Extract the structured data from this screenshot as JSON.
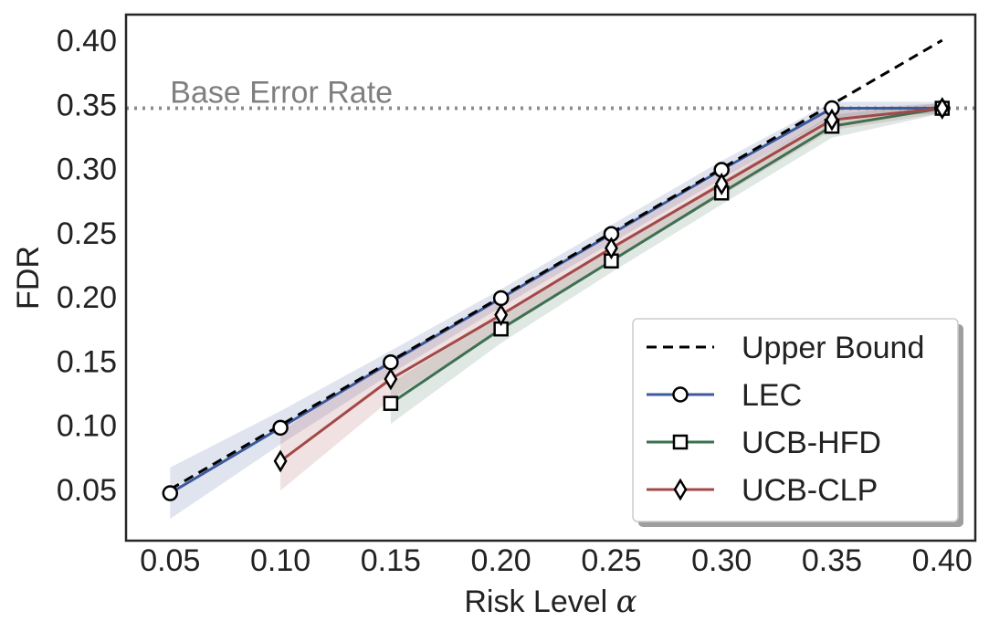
{
  "chart_data": {
    "type": "line",
    "xlabel": "Risk Level",
    "xlabel_symbol": "α",
    "ylabel": "FDR",
    "xlim": [
      0.03,
      0.415
    ],
    "ylim": [
      0.01,
      0.42
    ],
    "xticks": [
      "0.05",
      "0.10",
      "0.15",
      "0.20",
      "0.25",
      "0.30",
      "0.35",
      "0.40"
    ],
    "yticks": [
      "0.05",
      "0.10",
      "0.15",
      "0.20",
      "0.25",
      "0.30",
      "0.35",
      "0.40"
    ],
    "grid": false,
    "legend_position": "bottom-right",
    "reference_line": {
      "label": "Base Error Rate",
      "y": 0.347,
      "color": "#8c8c8c"
    },
    "upper_bound": {
      "name": "Upper Bound",
      "x": [
        0.05,
        0.4
      ],
      "y": [
        0.05,
        0.4
      ],
      "color": "#000000"
    },
    "series": [
      {
        "name": "LEC",
        "marker": "circle",
        "color": "#3d5a9c",
        "x": [
          0.05,
          0.1,
          0.15,
          0.2,
          0.25,
          0.3,
          0.35,
          0.4
        ],
        "y": [
          0.047,
          0.098,
          0.149,
          0.199,
          0.249,
          0.299,
          0.347,
          0.347
        ],
        "band_low": [
          0.027,
          0.085,
          0.14,
          0.192,
          0.242,
          0.292,
          0.34,
          0.343
        ],
        "band_high": [
          0.067,
          0.111,
          0.158,
          0.206,
          0.256,
          0.306,
          0.352,
          0.352
        ]
      },
      {
        "name": "UCB-HFD",
        "marker": "square",
        "color": "#3e7052",
        "x": [
          0.15,
          0.2,
          0.25,
          0.3,
          0.35,
          0.4
        ],
        "y": [
          0.117,
          0.175,
          0.228,
          0.281,
          0.333,
          0.347
        ],
        "band_low": [
          0.101,
          0.164,
          0.219,
          0.272,
          0.324,
          0.343
        ],
        "band_high": [
          0.133,
          0.186,
          0.237,
          0.29,
          0.342,
          0.351
        ]
      },
      {
        "name": "UCB-CLP",
        "marker": "diamond",
        "color": "#a34848",
        "x": [
          0.1,
          0.15,
          0.2,
          0.25,
          0.3,
          0.35,
          0.4
        ],
        "y": [
          0.072,
          0.136,
          0.186,
          0.238,
          0.288,
          0.338,
          0.347
        ],
        "band_low": [
          0.049,
          0.12,
          0.174,
          0.228,
          0.279,
          0.33,
          0.343
        ],
        "band_high": [
          0.095,
          0.152,
          0.198,
          0.248,
          0.297,
          0.346,
          0.351
        ]
      }
    ]
  }
}
